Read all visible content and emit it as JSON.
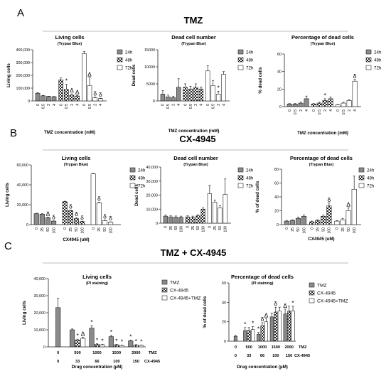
{
  "panels": {
    "A": {
      "letter": "A",
      "title": "TMZ"
    },
    "B": {
      "letter": "B",
      "title": "CX-4945"
    },
    "C": {
      "letter": "C",
      "title": "TMZ + CX-4945"
    }
  },
  "chart_data": [
    {
      "id": "a1",
      "type": "bar",
      "title": "Living cells",
      "subtitle": "(Trypan Blue)",
      "xlabel": "TMZ concentration (mM)",
      "ylabel": "Living cells",
      "ylim": [
        0,
        400000
      ],
      "yticks": [
        "0",
        "100,000",
        "200,000",
        "300,000",
        "400,000"
      ],
      "groups": [
        {
          "name": "24h",
          "categories": [
            "0",
            "0.5",
            "2",
            "4"
          ],
          "values": [
            60000,
            40000,
            35000,
            33000
          ],
          "errors": [
            5000,
            3000,
            2000,
            2000
          ],
          "marks": [
            "",
            "",
            "",
            ""
          ]
        },
        {
          "name": "48h",
          "categories": [
            "0",
            "0.5",
            "2",
            "4"
          ],
          "values": [
            165000,
            90000,
            45000,
            38000
          ],
          "errors": [
            15000,
            40000,
            10000,
            5000
          ],
          "marks": [
            "",
            "*",
            "Δ",
            "Δ"
          ]
        },
        {
          "name": "72h",
          "categories": [
            "0",
            "0.5",
            "2",
            "4"
          ],
          "values": [
            370000,
            120000,
            25000,
            18000
          ],
          "errors": [
            15000,
            60000,
            5000,
            3000
          ],
          "marks": [
            "",
            "Δ",
            "δ",
            "δ"
          ]
        }
      ],
      "legend": [
        "24h",
        "48h",
        "72h"
      ],
      "legend_position": "right"
    },
    {
      "id": "a2",
      "type": "bar",
      "title": "Dead cell number",
      "subtitle": "(Trypan Blue)",
      "xlabel": "TMZ concentration (mM)",
      "ylabel": "Dead cells",
      "ylim": [
        0,
        15000
      ],
      "yticks": [
        "0",
        "5000",
        "10000",
        "15000"
      ],
      "groups": [
        {
          "name": "24h",
          "categories": [
            "0",
            "0.5",
            "2",
            "4"
          ],
          "values": [
            2000,
            1200,
            1000,
            4000
          ],
          "errors": [
            1000,
            500,
            400,
            2500
          ],
          "marks": [
            "",
            "",
            "",
            ""
          ]
        },
        {
          "name": "48h",
          "categories": [
            "0",
            "0.5",
            "2",
            "4"
          ],
          "values": [
            4000,
            3500,
            4000,
            3500
          ],
          "errors": [
            1000,
            800,
            1000,
            600
          ],
          "marks": [
            "",
            "",
            "",
            ""
          ]
        },
        {
          "name": "72h",
          "categories": [
            "0",
            "0.5",
            "2",
            "4"
          ],
          "values": [
            8800,
            4500,
            2000,
            7800
          ],
          "errors": [
            1500,
            1500,
            800,
            800
          ],
          "marks": [
            "",
            "",
            "*",
            ""
          ]
        }
      ],
      "legend": [
        "24h",
        "48h",
        "72h"
      ],
      "legend_position": "right"
    },
    {
      "id": "a3",
      "type": "bar",
      "title": "Percentage of dead cells",
      "subtitle": "(Trypan Blue)",
      "xlabel": "TMZ concentration (mM)",
      "ylabel": "% dead cells",
      "ylim": [
        0,
        60
      ],
      "yticks": [
        "0",
        "20",
        "40",
        "60"
      ],
      "groups": [
        {
          "name": "24h",
          "categories": [
            "0",
            "0.5",
            "2",
            "4"
          ],
          "values": [
            3,
            3,
            4,
            9
          ],
          "errors": [
            0.5,
            0.5,
            1,
            3
          ],
          "marks": [
            "",
            "",
            "",
            ""
          ]
        },
        {
          "name": "48h",
          "categories": [
            "0",
            "0.5",
            "2",
            "4"
          ],
          "values": [
            3,
            4,
            7,
            9
          ],
          "errors": [
            0.5,
            1,
            2,
            2
          ],
          "marks": [
            "",
            "",
            "*",
            ""
          ]
        },
        {
          "name": "72h",
          "categories": [
            "0",
            "0.5",
            "2",
            "4"
          ],
          "values": [
            2,
            4,
            7,
            29
          ],
          "errors": [
            0.5,
            1,
            1,
            2
          ],
          "marks": [
            "",
            "",
            "",
            "δ"
          ]
        }
      ],
      "legend": [
        "24h",
        "48h",
        "72h"
      ],
      "legend_position": "right"
    },
    {
      "id": "b1",
      "type": "bar",
      "title": "Living cells",
      "subtitle": "(Trypan  Blue)",
      "xlabel": "CX4945 (uM)",
      "ylabel": "Living cells",
      "ylim": [
        0,
        60000
      ],
      "yticks": [
        "0",
        "20,000",
        "40,000",
        "60,000"
      ],
      "groups": [
        {
          "name": "24h",
          "categories": [
            "0",
            "25",
            "50",
            "100"
          ],
          "values": [
            11000,
            10500,
            7000,
            3500
          ],
          "errors": [
            500,
            500,
            500,
            300
          ],
          "marks": [
            "",
            "",
            "Δ",
            "δ"
          ]
        },
        {
          "name": "48h",
          "categories": [
            "0",
            "25",
            "50",
            "100"
          ],
          "values": [
            23000,
            14000,
            6000,
            3000
          ],
          "errors": [
            500,
            500,
            1000,
            300
          ],
          "marks": [
            "",
            "δ",
            "δ",
            "δ"
          ]
        },
        {
          "name": "72h",
          "categories": [
            "0",
            "25",
            "50",
            "100"
          ],
          "values": [
            51000,
            22000,
            4000,
            2500
          ],
          "errors": [
            500,
            500,
            500,
            300
          ],
          "marks": [
            "",
            "δ",
            "δ",
            "δ"
          ]
        }
      ],
      "legend": [
        "24h",
        "48h",
        "72h"
      ],
      "legend_position": "right"
    },
    {
      "id": "b2",
      "type": "bar",
      "title": "Dead cell number",
      "subtitle": "(Trypan  Blue)",
      "xlabel": "",
      "ylabel": "Dead cells",
      "ylim": [
        0,
        40000
      ],
      "yticks": [
        "0",
        "10,000",
        "20,000",
        "30,000",
        "40,000"
      ],
      "groups": [
        {
          "name": "24h",
          "categories": [
            "0",
            "25",
            "50",
            "100"
          ],
          "values": [
            5000,
            4500,
            4300,
            4200
          ],
          "errors": [
            800,
            800,
            800,
            800
          ],
          "marks": [
            "",
            "",
            "",
            ""
          ]
        },
        {
          "name": "48h",
          "categories": [
            "0",
            "25",
            "50",
            "100"
          ],
          "values": [
            4500,
            4200,
            5200,
            10000
          ],
          "errors": [
            800,
            800,
            800,
            1000
          ],
          "marks": [
            "",
            "",
            "",
            ""
          ]
        },
        {
          "name": "72h",
          "categories": [
            "0",
            "25",
            "50",
            "100"
          ],
          "values": [
            21000,
            15000,
            11000,
            20500
          ],
          "errors": [
            6000,
            1500,
            1500,
            11000
          ],
          "marks": [
            "",
            "",
            "",
            ""
          ]
        }
      ],
      "legend": [
        "24h",
        "48h",
        "72h"
      ],
      "legend_position": "right"
    },
    {
      "id": "b3",
      "type": "bar",
      "title": "Percentage of dead cells",
      "subtitle": "(Trypan  Blue)",
      "xlabel": "CX4945 (uM)",
      "ylabel": "% of dead cells",
      "ylim": [
        0,
        80
      ],
      "yticks": [
        "0",
        "20",
        "40",
        "60",
        "80"
      ],
      "groups": [
        {
          "name": "24h",
          "categories": [
            "0",
            "25",
            "50",
            "100"
          ],
          "values": [
            5,
            6,
            9,
            12
          ],
          "errors": [
            1,
            1,
            2,
            2
          ],
          "marks": [
            "",
            "",
            "",
            ""
          ]
        },
        {
          "name": "48h",
          "categories": [
            "0",
            "25",
            "50",
            "100"
          ],
          "values": [
            4,
            6,
            12,
            27
          ],
          "errors": [
            1,
            1,
            2,
            4
          ],
          "marks": [
            "",
            "",
            "",
            "δ"
          ]
        },
        {
          "name": "72h",
          "categories": [
            "0",
            "25",
            "50",
            "100"
          ],
          "values": [
            5,
            7,
            20,
            51
          ],
          "errors": [
            1,
            2,
            4,
            19
          ],
          "marks": [
            "",
            "",
            "Δ",
            ""
          ]
        }
      ],
      "legend": [
        "24h",
        "48h",
        "72h"
      ],
      "legend_position": "right"
    },
    {
      "id": "c1",
      "type": "bar",
      "title": "Living cells",
      "subtitle": "(PI staining)",
      "xlabel": "Drug concentration (µM)",
      "ylabel": "Living cells",
      "ylim": [
        0,
        40000
      ],
      "yticks": [
        "0",
        "10,000",
        "20,000",
        "30,000",
        "40,000"
      ],
      "row_labels": [
        "TMZ",
        "CX-4945"
      ],
      "categories_row1": [
        "0",
        "500",
        "1000",
        "1500",
        "2000"
      ],
      "categories_row2": [
        "0",
        "33",
        "66",
        "100",
        "150"
      ],
      "control": {
        "value": 23000,
        "error": 5500
      },
      "series": [
        {
          "name": "TMZ",
          "values": [
            10000,
            11000,
            6000,
            3500
          ],
          "errors": [
            500,
            1500,
            700,
            500
          ],
          "marks": [
            "",
            "*",
            "*",
            "*"
          ]
        },
        {
          "name": "CX-4945",
          "values": [
            4000,
            1500,
            1200,
            1000
          ],
          "errors": [
            500,
            300,
            300,
            300
          ],
          "marks": [
            "*",
            "*",
            "*",
            "*"
          ]
        },
        {
          "name": "CX-4945+TMZ",
          "values": [
            5000,
            1200,
            800,
            900
          ],
          "errors": [
            600,
            300,
            200,
            200
          ],
          "marks": [
            "Δ",
            "*",
            "*",
            "*"
          ]
        }
      ],
      "legend": [
        "TMZ",
        "CX-4945",
        "CX-4945+TMZ"
      ],
      "legend_position": "right"
    },
    {
      "id": "c2",
      "type": "bar",
      "title": "Percentage of dead cells",
      "subtitle": "(PI staining)",
      "xlabel": "Drug concentration (µM)",
      "ylabel": "% of dead cells",
      "ylim": [
        0,
        60
      ],
      "yticks": [
        "0",
        "20",
        "40",
        "60"
      ],
      "row_labels": [
        "TMZ",
        "CX-4945"
      ],
      "categories_row1": [
        "0",
        "500",
        "1000",
        "1500",
        "2000"
      ],
      "categories_row2": [
        "0",
        "33",
        "66",
        "100",
        "150"
      ],
      "control": {
        "value": 5,
        "error": 1
      },
      "series": [
        {
          "name": "TMZ",
          "values": [
            11,
            7,
            25,
            28
          ],
          "errors": [
            3,
            2,
            4,
            5
          ],
          "marks": [
            "*",
            "*",
            "",
            "Δ"
          ]
        },
        {
          "name": "CX-4945",
          "values": [
            11,
            16,
            30,
            31
          ],
          "errors": [
            3,
            3,
            5,
            5
          ],
          "marks": [
            "",
            "δ",
            "δ",
            ""
          ]
        },
        {
          "name": "CX-4945+TMZ",
          "values": [
            12,
            20,
            31,
            31
          ],
          "errors": [
            3,
            3,
            4,
            5
          ],
          "marks": [
            "*",
            "Δ",
            "",
            "*"
          ]
        }
      ],
      "legend": [
        "TMZ",
        "CX-4945",
        "CX-4945+TMZ"
      ],
      "legend_position": "right"
    }
  ]
}
